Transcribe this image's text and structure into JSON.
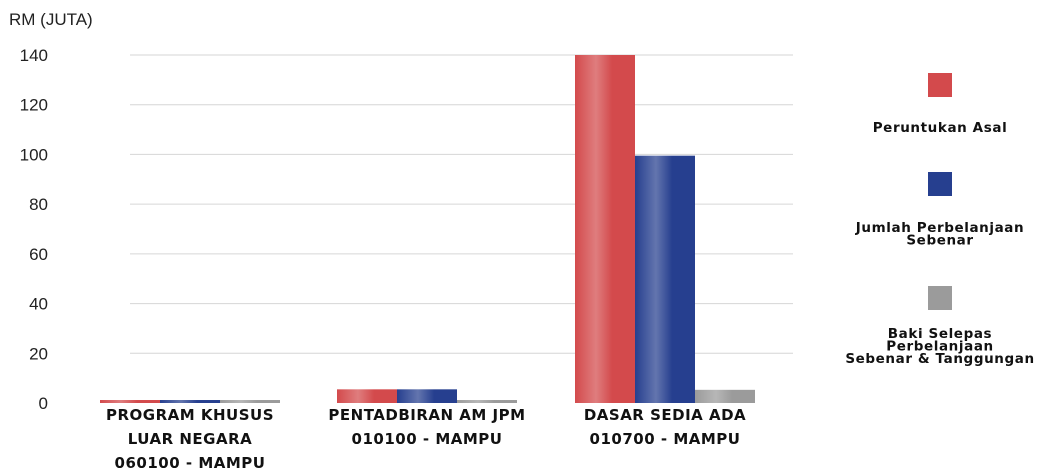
{
  "chart_data": {
    "type": "bar",
    "ylabel": "RM (JUTA)",
    "ylim": [
      0,
      140
    ],
    "yticks": [
      0,
      20,
      40,
      60,
      80,
      100,
      120,
      140
    ],
    "grid": true,
    "legend_position": "right",
    "categories": [
      [
        "PROGRAM KHUSUS",
        "LUAR NEGARA",
        "060100 - MAMPU"
      ],
      [
        "PENTADBIRAN AM JPM",
        "010100 - MAMPU"
      ],
      [
        "DASAR SEDIA ADA",
        "010700 - MAMPU"
      ]
    ],
    "series": [
      {
        "name": "Peruntukan Asal",
        "name_lines": [
          "Peruntukan Asal"
        ],
        "color": "#d34a4c",
        "values": [
          1.2,
          5.5,
          140
        ]
      },
      {
        "name": "Jumlah Perbelanjaan Sebenar",
        "name_lines": [
          "Jumlah Perbelanjaan",
          "Sebenar"
        ],
        "color": "#263f8f",
        "values": [
          1.2,
          5.5,
          99.5
        ]
      },
      {
        "name": "Baki Selepas Perbelanjaan Sebenar & Tanggungan",
        "name_lines": [
          "Baki Selepas",
          "Perbelanjaan",
          "Sebenar & Tanggungan"
        ],
        "color": "#9b9b9b",
        "values": [
          1.2,
          1.2,
          5.3
        ]
      }
    ]
  }
}
